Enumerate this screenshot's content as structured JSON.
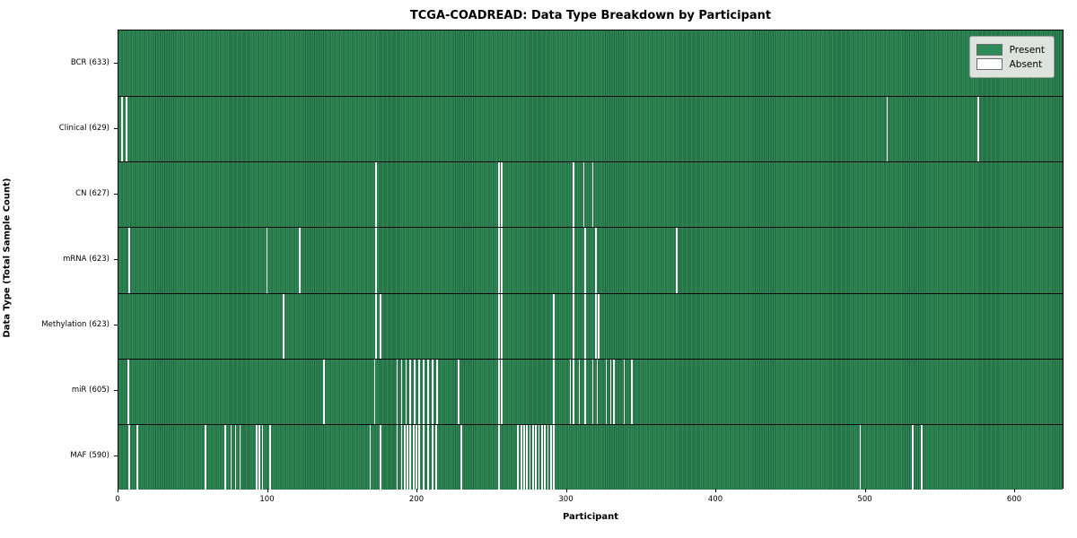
{
  "title": "TCGA-COADREAD: Data Type Breakdown by Participant",
  "xlabel": "Participant",
  "ylabel": "Data Type (Total Sample Count)",
  "legend": {
    "present_label": "Present",
    "absent_label": "Absent"
  },
  "colors": {
    "present": "#2e8b57",
    "present_edge": "#225f3c",
    "absent": "#fdfdfd",
    "row_separator": "#000000",
    "legend_bg": "#dde4dd"
  },
  "chart_data": {
    "type": "heatmap",
    "title": "TCGA-COADREAD: Data Type Breakdown by Participant",
    "xlabel": "Participant",
    "ylabel": "Data Type (Total Sample Count)",
    "x_ticks": [
      0,
      100,
      200,
      300,
      400,
      500,
      600
    ],
    "n_participants": 633,
    "grid": false,
    "legend_entries": [
      "Present",
      "Absent"
    ],
    "legend_position": "upper right",
    "rows": [
      {
        "label": "BCR (633)",
        "name": "BCR",
        "present_count": 633,
        "absent_count": 0,
        "absent_participants": []
      },
      {
        "label": "Clinical (629)",
        "name": "Clinical",
        "present_count": 629,
        "absent_count": 4,
        "absent_participants": [
          2,
          5,
          514,
          575
        ]
      },
      {
        "label": "CN (627)",
        "name": "CN",
        "present_count": 627,
        "absent_count": 6,
        "absent_participants": [
          172,
          254,
          256,
          304,
          311,
          317
        ]
      },
      {
        "label": "mRNA (623)",
        "name": "mRNA",
        "present_count": 623,
        "absent_count": 10,
        "absent_participants": [
          7,
          99,
          121,
          172,
          254,
          256,
          304,
          312,
          319,
          373
        ]
      },
      {
        "label": "Methylation (623)",
        "name": "Methylation",
        "present_count": 623,
        "absent_count": 10,
        "absent_participants": [
          110,
          172,
          175,
          254,
          256,
          291,
          304,
          312,
          319,
          321
        ]
      },
      {
        "label": "miR (605)",
        "name": "miR",
        "present_count": 605,
        "absent_count": 28,
        "absent_participants": [
          6,
          137,
          171,
          186,
          189,
          192,
          195,
          198,
          201,
          204,
          207,
          210,
          213,
          227,
          254,
          256,
          291,
          302,
          304,
          308,
          312,
          317,
          320,
          326,
          329,
          331,
          338,
          343
        ]
      },
      {
        "label": "MAF (590)",
        "name": "MAF",
        "present_count": 590,
        "absent_count": 43,
        "absent_participants": [
          7,
          12,
          58,
          71,
          75,
          78,
          81,
          92,
          94,
          96,
          101,
          168,
          175,
          186,
          189,
          191,
          193,
          195,
          197,
          199,
          201,
          204,
          207,
          210,
          212,
          229,
          254,
          267,
          269,
          271,
          273,
          275,
          277,
          279,
          281,
          283,
          285,
          287,
          289,
          291,
          496,
          531,
          537
        ]
      }
    ]
  }
}
